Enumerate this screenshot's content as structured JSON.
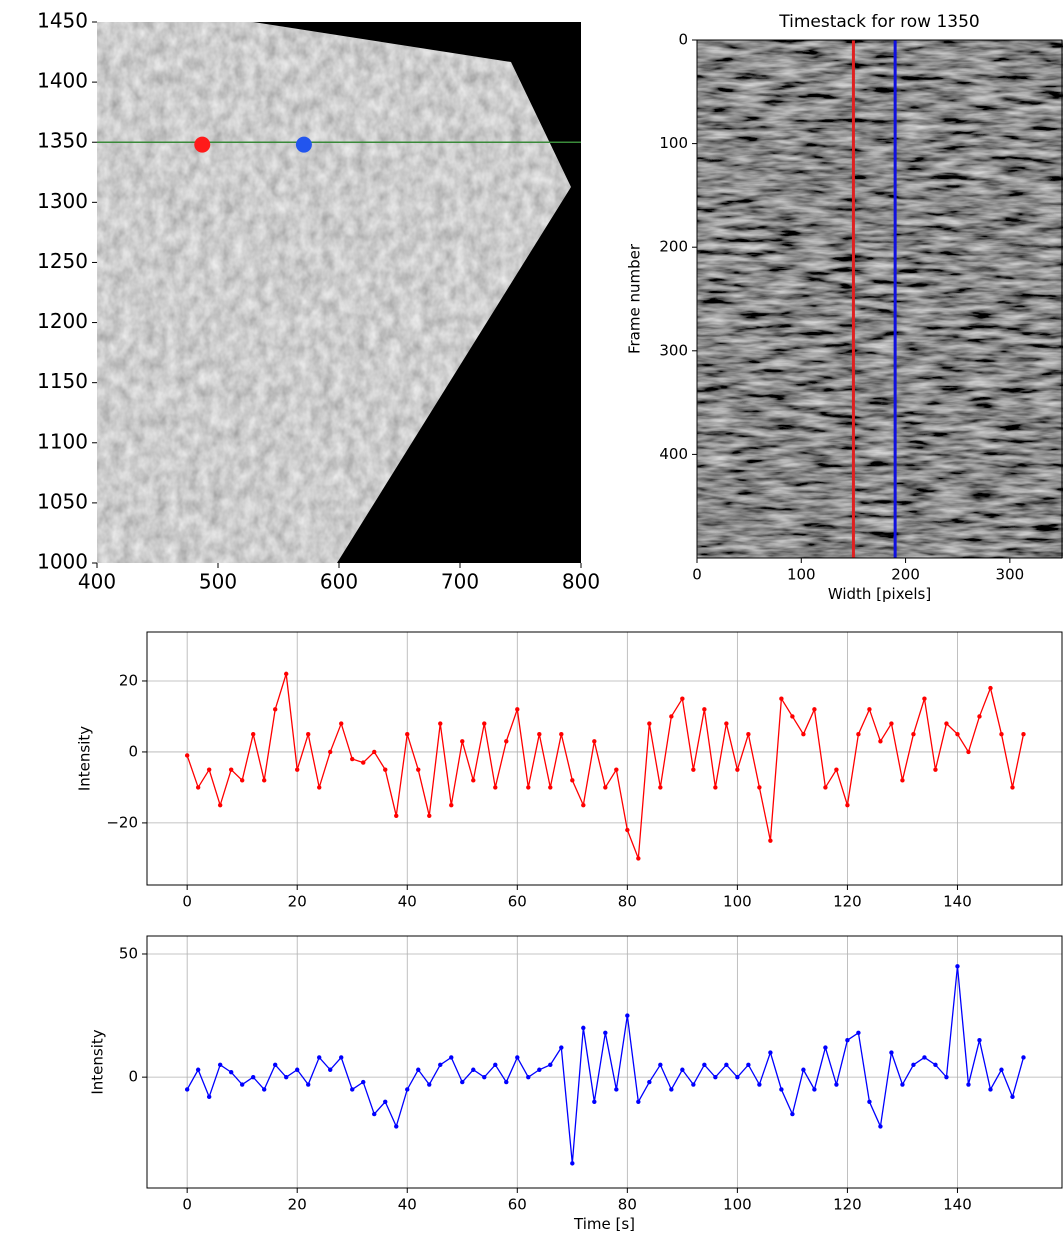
{
  "chart_data": [
    {
      "type": "image",
      "xlim": [
        400,
        800
      ],
      "ylim": [
        1000,
        1450
      ],
      "xticks": [
        400,
        500,
        600,
        700,
        800
      ],
      "yticks": [
        1000,
        1050,
        1100,
        1150,
        1200,
        1250,
        1300,
        1350,
        1400,
        1450
      ],
      "hlines": [
        {
          "value": 1350,
          "color": "#3a8a3a"
        }
      ],
      "series": [
        {
          "color": "#ff1a1a",
          "x": [
            487
          ],
          "values": [
            1348
          ]
        },
        {
          "color": "#2255ee",
          "x": [
            571
          ],
          "values": [
            1348
          ]
        }
      ]
    },
    {
      "type": "image",
      "title": "Timestack for row 1350",
      "xlabel": "Width [pixels]",
      "ylabel": "Frame number",
      "xlim": [
        0,
        350
      ],
      "ylim": [
        500,
        0
      ],
      "xticks": [
        0,
        100,
        200,
        300
      ],
      "yticks": [
        0,
        100,
        200,
        300,
        400
      ],
      "vlines": [
        {
          "value": 150,
          "color": "#e02020"
        },
        {
          "value": 190,
          "color": "#1010e0"
        }
      ]
    },
    {
      "type": "line",
      "ylabel": "Intensity",
      "xlim": [
        -7.3,
        159
      ],
      "ylim": [
        -37.5,
        33.8
      ],
      "xticks": [
        0,
        20,
        40,
        60,
        80,
        100,
        120,
        140
      ],
      "yticks": [
        {
          "value": -20,
          "label": "−20"
        },
        0,
        20
      ],
      "grid": true,
      "series": [
        {
          "color": "#ff0000",
          "x": [
            0,
            2,
            4,
            6,
            8,
            10,
            12,
            14,
            16,
            18,
            20,
            22,
            24,
            26,
            28,
            30,
            32,
            34,
            36,
            38,
            40,
            42,
            44,
            46,
            48,
            50,
            52,
            54,
            56,
            58,
            60,
            62,
            64,
            66,
            68,
            70,
            72,
            74,
            76,
            78,
            80,
            82,
            84,
            86,
            88,
            90,
            92,
            94,
            96,
            98,
            100,
            102,
            104,
            106,
            108,
            110,
            112,
            114,
            116,
            118,
            120,
            122,
            124,
            126,
            128,
            130,
            132,
            134,
            136,
            138,
            140,
            142,
            144,
            146,
            148,
            150,
            152
          ],
          "values": [
            -1,
            -10,
            -5,
            -15,
            -5,
            -8,
            5,
            -8,
            12,
            22,
            -5,
            5,
            -10,
            0,
            8,
            -2,
            -3,
            0,
            -5,
            -18,
            5,
            -5,
            -18,
            8,
            -15,
            3,
            -8,
            8,
            -10,
            3,
            12,
            -10,
            5,
            -10,
            5,
            -8,
            -15,
            3,
            -10,
            -5,
            -22,
            -30,
            8,
            -10,
            10,
            15,
            -5,
            12,
            -10,
            8,
            -5,
            5,
            -10,
            -25,
            15,
            10,
            5,
            12,
            -10,
            -5,
            -15,
            5,
            12,
            3,
            8,
            -8,
            5,
            15,
            -5,
            8,
            5,
            0,
            10,
            18,
            5,
            -10,
            5
          ]
        }
      ]
    },
    {
      "type": "line",
      "ylabel": "Intensity",
      "xlabel": "Time [s]",
      "xlim": [
        -7.3,
        159
      ],
      "ylim": [
        -45,
        57.3
      ],
      "xticks": [
        0,
        20,
        40,
        60,
        80,
        100,
        120,
        140
      ],
      "yticks": [
        0,
        50
      ],
      "grid": true,
      "series": [
        {
          "color": "#0000ff",
          "x": [
            0,
            2,
            4,
            6,
            8,
            10,
            12,
            14,
            16,
            18,
            20,
            22,
            24,
            26,
            28,
            30,
            32,
            34,
            36,
            38,
            40,
            42,
            44,
            46,
            48,
            50,
            52,
            54,
            56,
            58,
            60,
            62,
            64,
            66,
            68,
            70,
            72,
            74,
            76,
            78,
            80,
            82,
            84,
            86,
            88,
            90,
            92,
            94,
            96,
            98,
            100,
            102,
            104,
            106,
            108,
            110,
            112,
            114,
            116,
            118,
            120,
            122,
            124,
            126,
            128,
            130,
            132,
            134,
            136,
            138,
            140,
            142,
            144,
            146,
            148,
            150,
            152
          ],
          "values": [
            -5,
            3,
            -8,
            5,
            2,
            -3,
            0,
            -5,
            5,
            0,
            3,
            -3,
            8,
            3,
            8,
            -5,
            -2,
            -15,
            -10,
            -20,
            -5,
            3,
            -3,
            5,
            8,
            -2,
            3,
            0,
            5,
            -2,
            8,
            0,
            3,
            5,
            12,
            -35,
            20,
            -10,
            18,
            -5,
            25,
            -10,
            -2,
            5,
            -5,
            3,
            -3,
            5,
            0,
            5,
            0,
            5,
            -3,
            10,
            -5,
            -15,
            3,
            -5,
            12,
            -3,
            15,
            18,
            -10,
            -20,
            10,
            -3,
            5,
            8,
            5,
            0,
            45,
            -3,
            15,
            -5,
            3,
            -8,
            8
          ]
        }
      ]
    }
  ]
}
